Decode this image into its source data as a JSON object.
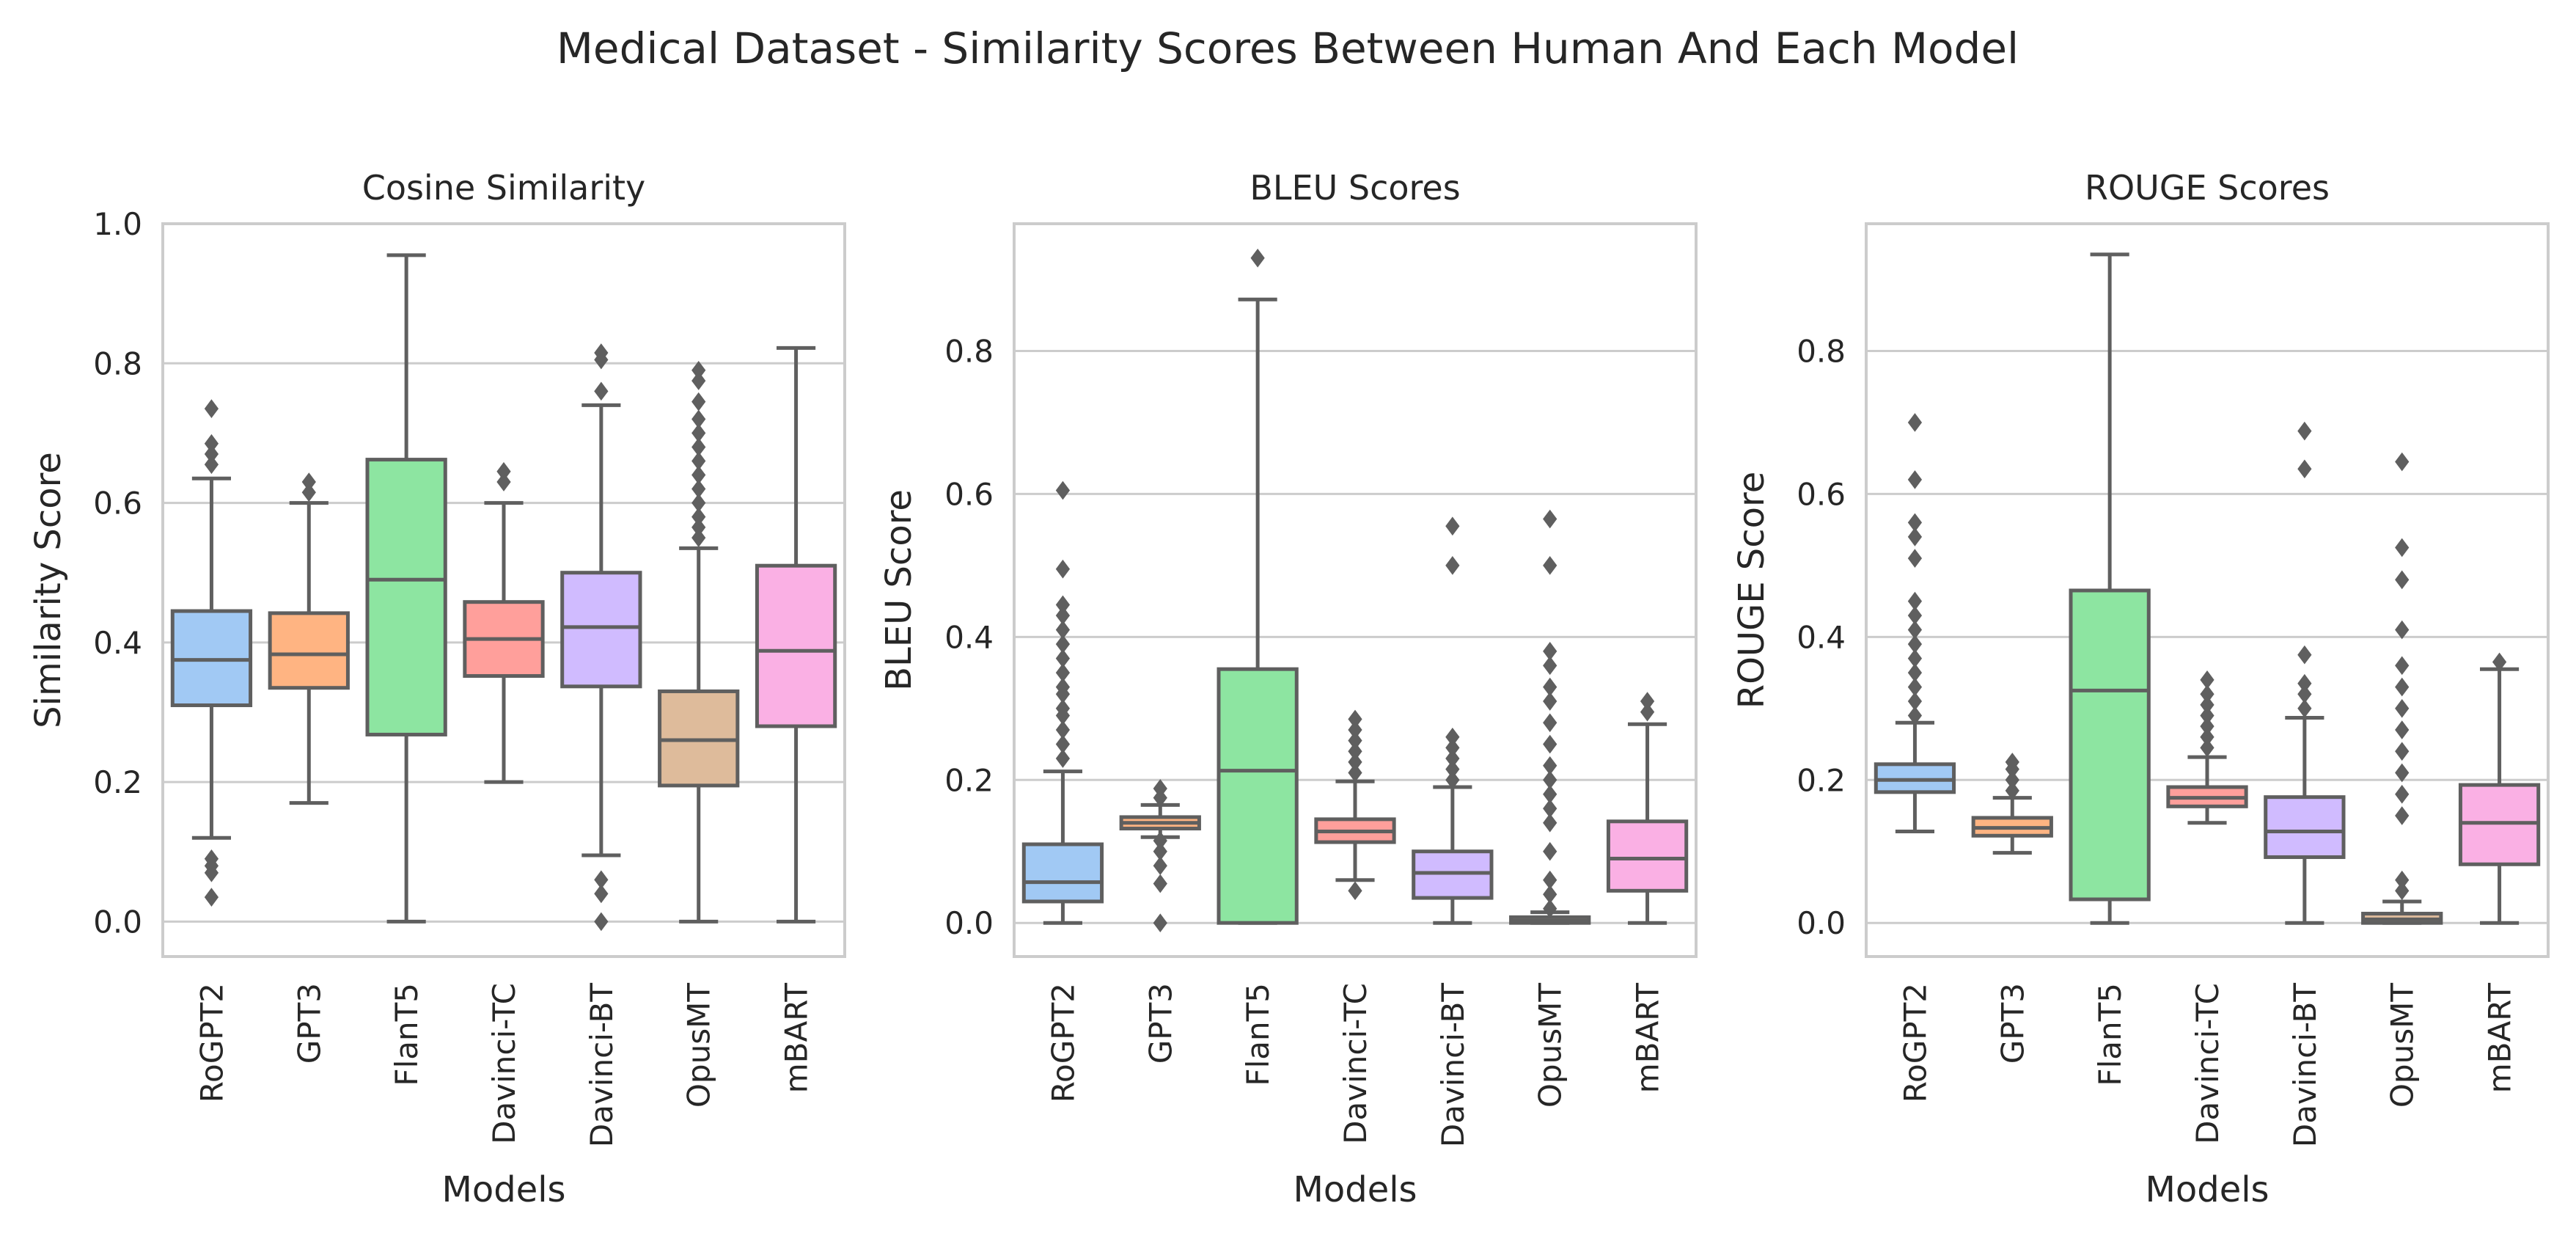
{
  "figure_title": "Medical Dataset - Similarity Scores Between Human And Each Model",
  "colors": {
    "RoGPT2": "#a1c9f4",
    "GPT3": "#ffb482",
    "FlanT5": "#8de5a1",
    "Davinci-TC": "#ff9f9b",
    "Davinci-BT": "#d0bbff",
    "OpusMT": "#debb9b",
    "mBART": "#fab0e4",
    "box_edge": "#5f5f5f",
    "grid": "#cccccc",
    "axes_border": "#cccccc"
  },
  "chart_data": [
    {
      "type": "box",
      "title": "Cosine Similarity",
      "xlabel": "Models",
      "ylabel": "Similarity Score",
      "ylim": [
        -0.05,
        1.0
      ],
      "yticks": [
        "0.0",
        "0.2",
        "0.4",
        "0.6",
        "0.8",
        "1.0"
      ],
      "grid": true,
      "categories": [
        "RoGPT2",
        "GPT3",
        "FlanT5",
        "Davinci-TC",
        "Davinci-BT",
        "OpusMT",
        "mBART"
      ],
      "boxes": [
        {
          "min": 0.12,
          "q1": 0.31,
          "median": 0.375,
          "q3": 0.445,
          "max": 0.635,
          "outliers": [
            0.035,
            0.07,
            0.08,
            0.09,
            0.655,
            0.67,
            0.685,
            0.735
          ]
        },
        {
          "min": 0.17,
          "q1": 0.335,
          "median": 0.383,
          "q3": 0.442,
          "max": 0.6,
          "outliers": [
            0.615,
            0.63
          ]
        },
        {
          "min": 0.0,
          "q1": 0.268,
          "median": 0.49,
          "q3": 0.662,
          "max": 0.955,
          "outliers": []
        },
        {
          "min": 0.2,
          "q1": 0.352,
          "median": 0.405,
          "q3": 0.458,
          "max": 0.6,
          "outliers": [
            0.63,
            0.645
          ]
        },
        {
          "min": 0.095,
          "q1": 0.337,
          "median": 0.422,
          "q3": 0.5,
          "max": 0.74,
          "outliers": [
            0.0,
            0.04,
            0.06,
            0.76,
            0.805,
            0.815
          ]
        },
        {
          "min": 0.0,
          "q1": 0.195,
          "median": 0.26,
          "q3": 0.33,
          "max": 0.535,
          "outliers": [
            0.55,
            0.565,
            0.58,
            0.6,
            0.62,
            0.64,
            0.66,
            0.68,
            0.7,
            0.72,
            0.745,
            0.775,
            0.79
          ]
        },
        {
          "min": 0.0,
          "q1": 0.28,
          "median": 0.388,
          "q3": 0.51,
          "max": 0.822,
          "outliers": []
        }
      ]
    },
    {
      "type": "box",
      "title": "BLEU Scores",
      "xlabel": "Models",
      "ylabel": "BLEU Score",
      "ylim": [
        -0.047,
        0.978
      ],
      "yticks": [
        "0.0",
        "0.2",
        "0.4",
        "0.6",
        "0.8"
      ],
      "grid": true,
      "categories": [
        "RoGPT2",
        "GPT3",
        "FlanT5",
        "Davinci-TC",
        "Davinci-BT",
        "OpusMT",
        "mBART"
      ],
      "boxes": [
        {
          "min": 0.0,
          "q1": 0.03,
          "median": 0.057,
          "q3": 0.11,
          "max": 0.212,
          "outliers": [
            0.23,
            0.25,
            0.27,
            0.29,
            0.3,
            0.32,
            0.33,
            0.35,
            0.37,
            0.39,
            0.41,
            0.43,
            0.445,
            0.495,
            0.605
          ]
        },
        {
          "min": 0.12,
          "q1": 0.132,
          "median": 0.14,
          "q3": 0.148,
          "max": 0.165,
          "outliers": [
            0.0,
            0.055,
            0.08,
            0.1,
            0.115,
            0.175,
            0.188
          ]
        },
        {
          "min": 0.0,
          "q1": 0.0,
          "median": 0.213,
          "q3": 0.355,
          "max": 0.872,
          "outliers": [
            0.93
          ]
        },
        {
          "min": 0.06,
          "q1": 0.113,
          "median": 0.128,
          "q3": 0.145,
          "max": 0.198,
          "outliers": [
            0.045,
            0.21,
            0.225,
            0.24,
            0.255,
            0.27,
            0.285
          ]
        },
        {
          "min": 0.0,
          "q1": 0.035,
          "median": 0.07,
          "q3": 0.1,
          "max": 0.19,
          "outliers": [
            0.2,
            0.215,
            0.23,
            0.245,
            0.26,
            0.5,
            0.555
          ]
        },
        {
          "min": 0.0,
          "q1": 0.0,
          "median": 0.003,
          "q3": 0.008,
          "max": 0.015,
          "outliers": [
            0.02,
            0.04,
            0.06,
            0.1,
            0.14,
            0.16,
            0.18,
            0.2,
            0.22,
            0.25,
            0.28,
            0.31,
            0.33,
            0.36,
            0.38,
            0.5,
            0.565
          ]
        },
        {
          "min": 0.0,
          "q1": 0.045,
          "median": 0.09,
          "q3": 0.142,
          "max": 0.278,
          "outliers": [
            0.295,
            0.31
          ]
        }
      ]
    },
    {
      "type": "box",
      "title": "ROUGE Scores",
      "xlabel": "Models",
      "ylabel": "ROUGE Score",
      "ylim": [
        -0.047,
        0.978
      ],
      "yticks": [
        "0.0",
        "0.2",
        "0.4",
        "0.6",
        "0.8"
      ],
      "grid": true,
      "categories": [
        "RoGPT2",
        "GPT3",
        "FlanT5",
        "Davinci-TC",
        "Davinci-BT",
        "OpusMT",
        "mBART"
      ],
      "boxes": [
        {
          "min": 0.128,
          "q1": 0.183,
          "median": 0.2,
          "q3": 0.222,
          "max": 0.28,
          "outliers": [
            0.29,
            0.31,
            0.33,
            0.35,
            0.37,
            0.39,
            0.41,
            0.43,
            0.45,
            0.51,
            0.54,
            0.56,
            0.62,
            0.7
          ]
        },
        {
          "min": 0.098,
          "q1": 0.122,
          "median": 0.133,
          "q3": 0.147,
          "max": 0.175,
          "outliers": [
            0.185,
            0.2,
            0.215,
            0.225
          ]
        },
        {
          "min": 0.0,
          "q1": 0.033,
          "median": 0.325,
          "q3": 0.465,
          "max": 0.935,
          "outliers": []
        },
        {
          "min": 0.14,
          "q1": 0.163,
          "median": 0.175,
          "q3": 0.19,
          "max": 0.232,
          "outliers": [
            0.245,
            0.26,
            0.275,
            0.29,
            0.305,
            0.32,
            0.34
          ]
        },
        {
          "min": 0.0,
          "q1": 0.092,
          "median": 0.128,
          "q3": 0.176,
          "max": 0.287,
          "outliers": [
            0.3,
            0.32,
            0.335,
            0.375,
            0.635,
            0.688
          ]
        },
        {
          "min": 0.0,
          "q1": 0.0,
          "median": 0.005,
          "q3": 0.013,
          "max": 0.03,
          "outliers": [
            0.045,
            0.06,
            0.15,
            0.18,
            0.21,
            0.24,
            0.27,
            0.3,
            0.33,
            0.36,
            0.41,
            0.48,
            0.525,
            0.645
          ]
        },
        {
          "min": 0.0,
          "q1": 0.082,
          "median": 0.14,
          "q3": 0.193,
          "max": 0.355,
          "outliers": [
            0.365
          ]
        }
      ]
    }
  ]
}
